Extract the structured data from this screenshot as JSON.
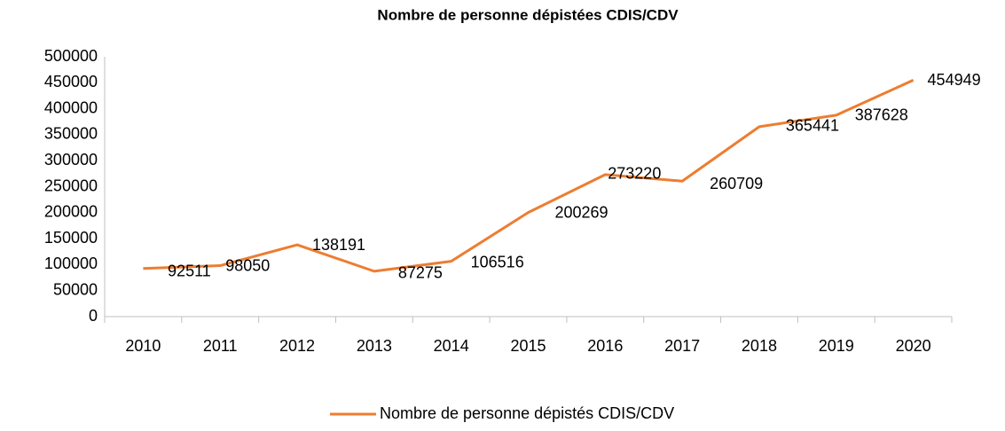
{
  "chart_data": {
    "type": "line",
    "title": "Nombre de personne dépistées CDIS/CDV",
    "categories": [
      "2010",
      "2011",
      "2012",
      "2013",
      "2014",
      "2015",
      "2016",
      "2017",
      "2018",
      "2019",
      "2020"
    ],
    "series": [
      {
        "name": "Nombre de personne dépistés CDIS/CDV",
        "color": "#ed7d31",
        "values": [
          92511,
          98050,
          138191,
          87275,
          106516,
          200269,
          273220,
          260709,
          365441,
          387628,
          454949
        ]
      }
    ],
    "ylim": [
      0,
      500000
    ],
    "yticks": [
      0,
      50000,
      100000,
      150000,
      200000,
      250000,
      300000,
      350000,
      400000,
      450000,
      500000
    ],
    "grid": false,
    "legend": "bottom"
  }
}
